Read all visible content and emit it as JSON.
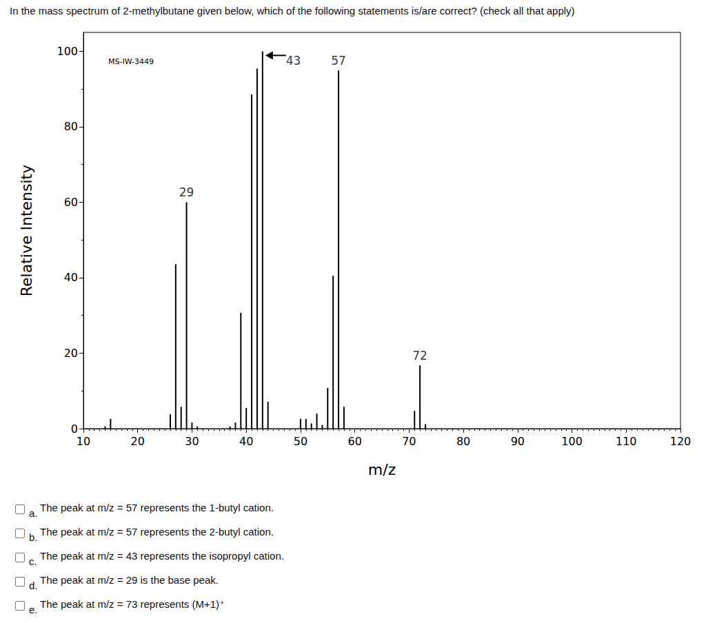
{
  "question": "In the mass spectrum of 2-methylbutane given below, which of the following statements is/are correct? (check all that apply)",
  "chart_data": {
    "type": "bar",
    "source_label": "MS-IW-3449",
    "x_label": "m/z",
    "y_label": "Relative Intensity",
    "x": [
      14,
      15,
      26,
      27,
      28,
      29,
      30,
      31,
      37,
      38,
      39,
      40,
      41,
      42,
      43,
      44,
      50,
      51,
      52,
      53,
      54,
      55,
      56,
      57,
      58,
      71,
      72,
      73
    ],
    "values": [
      0.6,
      2.6,
      3.8,
      43.6,
      5.8,
      60,
      1.6,
      0.6,
      0.6,
      1.6,
      30.7,
      5.5,
      88.5,
      95.4,
      100,
      7.1,
      2.6,
      2.6,
      1.4,
      4,
      1,
      10.8,
      40.5,
      94.9,
      5.8,
      4.7,
      16.8,
      1.2
    ],
    "color": "#000000",
    "xlim": [
      10,
      120
    ],
    "xticks": [
      10,
      20,
      30,
      40,
      50,
      60,
      70,
      80,
      90,
      100,
      110,
      120
    ],
    "ylim": [
      0,
      105
    ],
    "yticks": [
      0,
      20,
      40,
      60,
      80,
      100
    ],
    "grid": false,
    "annotations": [
      {
        "text": "29",
        "x": 29
      },
      {
        "text": "43",
        "x": 43
      },
      {
        "text": "57",
        "x": 57
      },
      {
        "text": "72",
        "x": 72
      }
    ]
  },
  "options": [
    {
      "letter": "a.",
      "text": "The peak at m/z = 57 represents the 1-butyl cation."
    },
    {
      "letter": "b.",
      "text": "The peak at m/z = 57 represents the 2-butyl cation."
    },
    {
      "letter": "c.",
      "text": "The peak at m/z = 43 represents the isopropyl cation."
    },
    {
      "letter": "d.",
      "text": "The peak at m/z = 29 is the base peak."
    },
    {
      "letter": "e.",
      "text": "The peak at m/z = 73 represents (M+1)⁺"
    }
  ]
}
